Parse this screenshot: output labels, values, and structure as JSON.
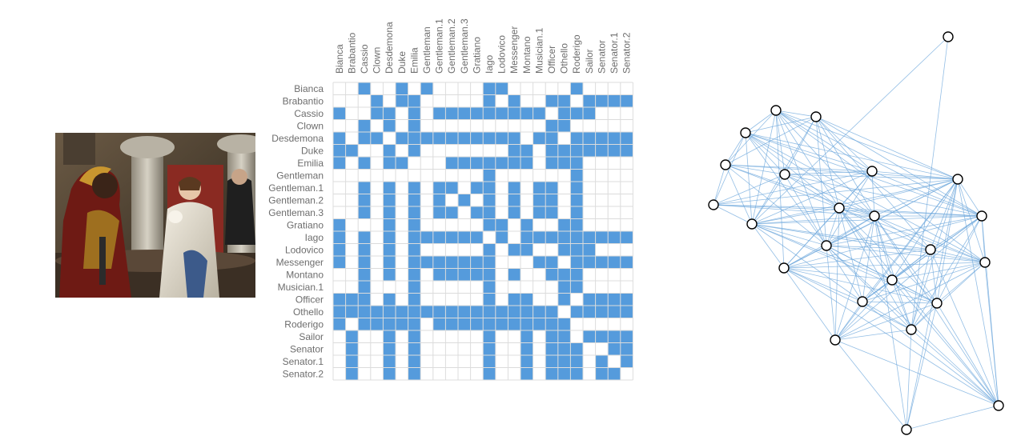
{
  "characters": [
    "Bianca",
    "Brabantio",
    "Cassio",
    "Clown",
    "Desdemona",
    "Duke",
    "Emilia",
    "Gentleman",
    "Gentleman.1",
    "Gentleman.2",
    "Gentleman.3",
    "Gratiano",
    "Iago",
    "Lodovico",
    "Messenger",
    "Montano",
    "Musician.1",
    "Officer",
    "Othello",
    "Roderigo",
    "Sailor",
    "Senator",
    "Senator.1",
    "Senator.2"
  ],
  "matrix": {
    "fill_color": "#559bdc",
    "grid_color": "#dcdcdc",
    "rows": [
      "001001010000110000010000",
      "000101100000101001101111",
      "100110101111111110111000",
      "001010100000000001100000",
      "101101111111111011011111",
      "110010100000001101111111",
      "101011000111111101110000",
      "000000000000100000010000",
      "001010101101101011010000",
      "001010101010101011010000",
      "001010101101101011010000",
      "100010100000110100110000",
      "101010111111010111111111",
      "101010100000101100111000",
      "101010111111100011011111",
      "001010101111101001110000",
      "001000100000100000110000",
      "111010100000101100101111",
      "111111111111111111011111",
      "101111101111111111100000",
      "010010100000100101101111",
      "010010100000100101110011",
      "010010100000100101110101",
      "010010100000100101110110"
    ]
  },
  "graph": {
    "edge_color": "#6fa8dc",
    "node_fill": "#ffffff",
    "node_stroke": "#000000",
    "nodes": [
      {
        "id": "top"
      },
      {
        "id": "n2"
      },
      {
        "id": "n3"
      },
      {
        "id": "n4"
      },
      {
        "id": "n5"
      },
      {
        "id": "n6"
      },
      {
        "id": "n7"
      },
      {
        "id": "n8"
      },
      {
        "id": "n9"
      },
      {
        "id": "n10"
      },
      {
        "id": "n11"
      },
      {
        "id": "n12"
      },
      {
        "id": "n13"
      },
      {
        "id": "n14"
      },
      {
        "id": "n15"
      },
      {
        "id": "n16"
      },
      {
        "id": "n17"
      },
      {
        "id": "n18"
      },
      {
        "id": "n19"
      },
      {
        "id": "n20"
      },
      {
        "id": "n21"
      },
      {
        "id": "n22"
      },
      {
        "id": "n23"
      },
      {
        "id": "n24"
      }
    ],
    "edges": [
      [
        0,
        8
      ],
      [
        0,
        20
      ],
      [
        1,
        2
      ],
      [
        1,
        3
      ],
      [
        1,
        4
      ],
      [
        1,
        5
      ],
      [
        1,
        6
      ],
      [
        1,
        8
      ],
      [
        1,
        9
      ],
      [
        1,
        10
      ],
      [
        1,
        11
      ],
      [
        1,
        12
      ],
      [
        1,
        13
      ],
      [
        1,
        15
      ],
      [
        1,
        16
      ],
      [
        2,
        3
      ],
      [
        2,
        4
      ],
      [
        2,
        5
      ],
      [
        2,
        6
      ],
      [
        2,
        8
      ],
      [
        2,
        9
      ],
      [
        2,
        10
      ],
      [
        2,
        11
      ],
      [
        2,
        12
      ],
      [
        2,
        13
      ],
      [
        2,
        14
      ],
      [
        3,
        4
      ],
      [
        3,
        5
      ],
      [
        3,
        6
      ],
      [
        3,
        7
      ],
      [
        3,
        8
      ],
      [
        3,
        9
      ],
      [
        3,
        10
      ],
      [
        3,
        11
      ],
      [
        3,
        12
      ],
      [
        3,
        13
      ],
      [
        3,
        15
      ],
      [
        4,
        5
      ],
      [
        4,
        6
      ],
      [
        4,
        7
      ],
      [
        4,
        8
      ],
      [
        4,
        9
      ],
      [
        4,
        10
      ],
      [
        4,
        11
      ],
      [
        4,
        13
      ],
      [
        5,
        6
      ],
      [
        5,
        7
      ],
      [
        5,
        8
      ],
      [
        5,
        9
      ],
      [
        5,
        10
      ],
      [
        5,
        11
      ],
      [
        5,
        12
      ],
      [
        5,
        13
      ],
      [
        6,
        7
      ],
      [
        6,
        8
      ],
      [
        6,
        9
      ],
      [
        6,
        10
      ],
      [
        6,
        11
      ],
      [
        6,
        12
      ],
      [
        6,
        13
      ],
      [
        6,
        16
      ],
      [
        7,
        8
      ],
      [
        7,
        9
      ],
      [
        7,
        10
      ],
      [
        7,
        11
      ],
      [
        7,
        12
      ],
      [
        8,
        9
      ],
      [
        8,
        10
      ],
      [
        8,
        11
      ],
      [
        8,
        12
      ],
      [
        8,
        13
      ],
      [
        8,
        14
      ],
      [
        8,
        15
      ],
      [
        8,
        16
      ],
      [
        8,
        17
      ],
      [
        8,
        18
      ],
      [
        8,
        19
      ],
      [
        9,
        10
      ],
      [
        9,
        11
      ],
      [
        9,
        12
      ],
      [
        9,
        13
      ],
      [
        9,
        14
      ],
      [
        9,
        15
      ],
      [
        9,
        16
      ],
      [
        9,
        17
      ],
      [
        9,
        18
      ],
      [
        9,
        19
      ],
      [
        9,
        20
      ],
      [
        9,
        21
      ],
      [
        9,
        22
      ],
      [
        10,
        11
      ],
      [
        10,
        12
      ],
      [
        10,
        13
      ],
      [
        10,
        14
      ],
      [
        10,
        15
      ],
      [
        10,
        16
      ],
      [
        10,
        17
      ],
      [
        10,
        18
      ],
      [
        10,
        19
      ],
      [
        10,
        20
      ],
      [
        10,
        21
      ],
      [
        10,
        22
      ],
      [
        10,
        23
      ],
      [
        11,
        12
      ],
      [
        11,
        13
      ],
      [
        11,
        14
      ],
      [
        11,
        15
      ],
      [
        11,
        16
      ],
      [
        11,
        17
      ],
      [
        11,
        18
      ],
      [
        11,
        19
      ],
      [
        11,
        20
      ],
      [
        11,
        21
      ],
      [
        11,
        22
      ],
      [
        11,
        23
      ],
      [
        12,
        13
      ],
      [
        12,
        14
      ],
      [
        12,
        15
      ],
      [
        12,
        16
      ],
      [
        12,
        17
      ],
      [
        12,
        18
      ],
      [
        12,
        19
      ],
      [
        12,
        20
      ],
      [
        12,
        21
      ],
      [
        12,
        22
      ],
      [
        13,
        14
      ],
      [
        13,
        15
      ],
      [
        13,
        16
      ],
      [
        13,
        17
      ],
      [
        13,
        18
      ],
      [
        13,
        19
      ],
      [
        13,
        20
      ],
      [
        13,
        21
      ],
      [
        13,
        22
      ],
      [
        14,
        15
      ],
      [
        14,
        16
      ],
      [
        14,
        17
      ],
      [
        14,
        18
      ],
      [
        14,
        19
      ],
      [
        14,
        20
      ],
      [
        14,
        22
      ],
      [
        15,
        16
      ],
      [
        15,
        17
      ],
      [
        15,
        18
      ],
      [
        15,
        19
      ],
      [
        15,
        20
      ],
      [
        15,
        21
      ],
      [
        15,
        22
      ],
      [
        16,
        17
      ],
      [
        16,
        18
      ],
      [
        16,
        19
      ],
      [
        16,
        20
      ],
      [
        16,
        21
      ],
      [
        16,
        22
      ],
      [
        17,
        18
      ],
      [
        17,
        19
      ],
      [
        17,
        20
      ],
      [
        17,
        21
      ],
      [
        17,
        22
      ],
      [
        18,
        19
      ],
      [
        18,
        20
      ],
      [
        18,
        21
      ],
      [
        18,
        22
      ],
      [
        19,
        20
      ],
      [
        19,
        21
      ],
      [
        19,
        22
      ],
      [
        19,
        23
      ],
      [
        20,
        21
      ],
      [
        20,
        22
      ],
      [
        20,
        23
      ],
      [
        21,
        22
      ],
      [
        21,
        23
      ],
      [
        22,
        23
      ]
    ]
  }
}
